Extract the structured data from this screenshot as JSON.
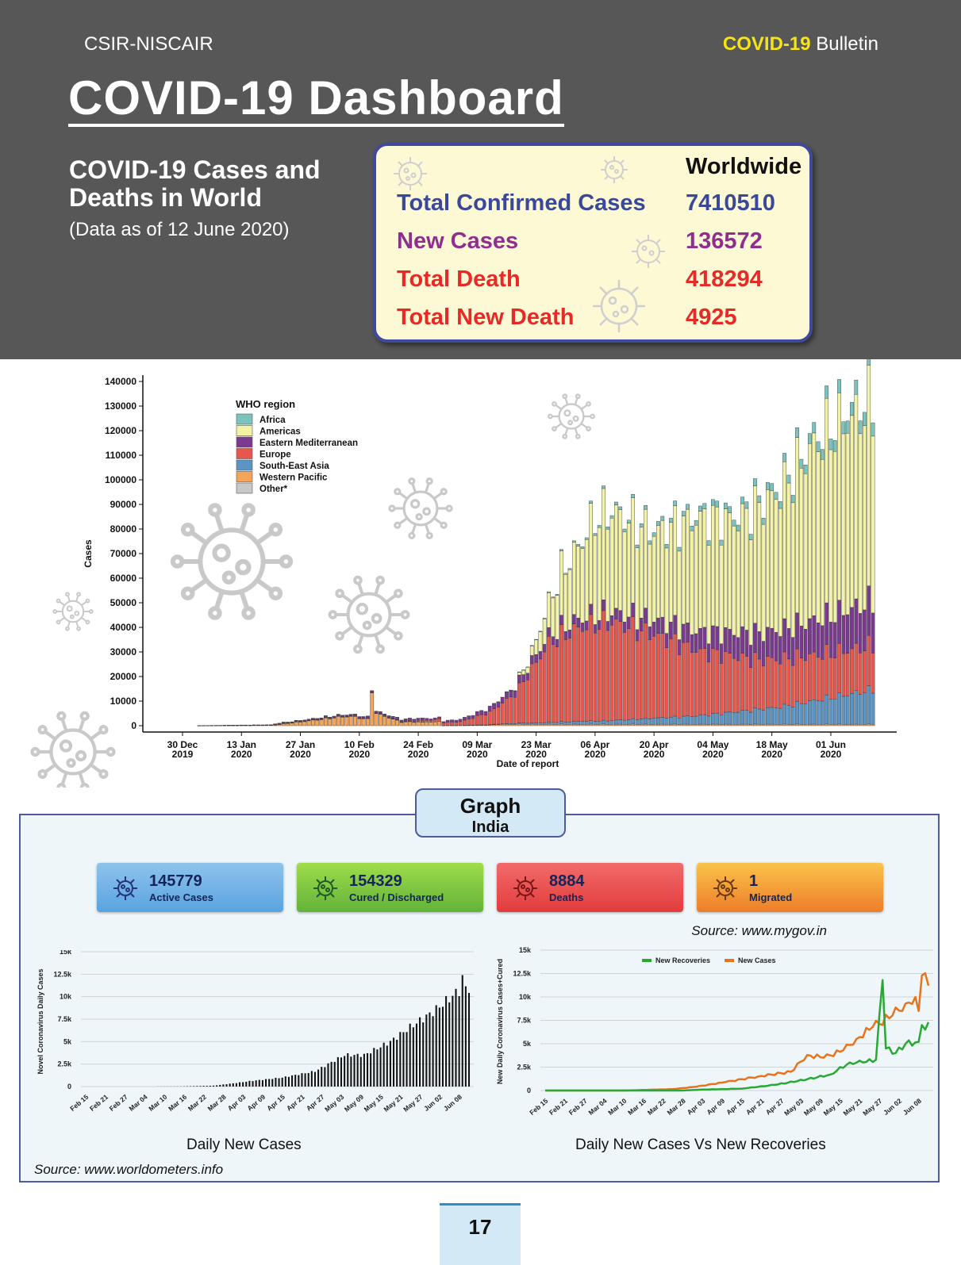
{
  "header": {
    "org": "CSIR-NISCAIR",
    "bulletin_highlight": "COVID-19",
    "bulletin_rest": "Bulletin",
    "title": "COVID-19 Dashboard",
    "subtitle": "COVID-19 Cases and Deaths in World",
    "as_of": "(Data as of 12 June 2020)"
  },
  "worldwide": {
    "heading": "Worldwide",
    "rows": [
      {
        "label": "Total Confirmed Cases",
        "value": "7410510",
        "color": "#3a4899"
      },
      {
        "label": "New Cases",
        "value": "136572",
        "color": "#8e2f8f"
      },
      {
        "label": "Total Death",
        "value": "418294",
        "color": "#e62a26"
      },
      {
        "label": "Total New Death",
        "value": "4925",
        "color": "#e62a26"
      }
    ]
  },
  "graph_tab": {
    "title": "Graph",
    "subtitle": "India"
  },
  "india_cards": [
    {
      "value": "145779",
      "label": "Active Cases",
      "color_top": "#8ec3ec",
      "color_bottom": "#5aa3e0"
    },
    {
      "value": "154329",
      "label": "Cured / Discharged",
      "color_top": "#9fdc4a",
      "color_bottom": "#62b33a"
    },
    {
      "value": "8884",
      "label": "Deaths",
      "color_top": "#f26b6b",
      "color_bottom": "#e23c3c"
    },
    {
      "value": "1",
      "label": "Migrated",
      "color_top": "#f9c34a",
      "color_bottom": "#ee7d2a"
    }
  ],
  "source_mygov": "Source: www.mygov.in",
  "source_worldometers": "Source: www.worldometers.info",
  "caption_daily": "Daily New Cases",
  "caption_recov": "Daily New Cases Vs New Recoveries",
  "page_number": "17",
  "chart_data": [
    {
      "type": "bar",
      "stacked": true,
      "xlabel": "Date of report",
      "ylabel": "Cases",
      "ylim": [
        0,
        140000
      ],
      "yticks": [
        0,
        10000,
        20000,
        30000,
        40000,
        50000,
        60000,
        70000,
        80000,
        90000,
        100000,
        110000,
        120000,
        130000,
        140000
      ],
      "xtick_labels": [
        [
          "30 Dec",
          "2019"
        ],
        [
          "13 Jan",
          "2020"
        ],
        [
          "27 Jan",
          "2020"
        ],
        [
          "10 Feb",
          "2020"
        ],
        [
          "24 Feb",
          "2020"
        ],
        [
          "09 Mar",
          "2020"
        ],
        [
          "23 Mar",
          "2020"
        ],
        [
          "06 Apr",
          "2020"
        ],
        [
          "20 Apr",
          "2020"
        ],
        [
          "04 May",
          "2020"
        ],
        [
          "18 May",
          "2020"
        ],
        [
          "01 Jun",
          "2020"
        ]
      ],
      "legend_title": "WHO region",
      "legend_position": "top-left",
      "series": [
        {
          "name": "Africa",
          "color": "#7bc4be"
        },
        {
          "name": "Americas",
          "color": "#f3f3a8"
        },
        {
          "name": "Eastern Mediterranean",
          "color": "#7b3a8f"
        },
        {
          "name": "Europe",
          "color": "#e7574e"
        },
        {
          "name": "South-East Asia",
          "color": "#5b95c6"
        },
        {
          "name": "Western Pacific",
          "color": "#f5a55a"
        },
        {
          "name": "Other*",
          "color": "#c8c8c8"
        }
      ],
      "x_range": [
        "2019-12-30",
        "2020-06-11"
      ],
      "total_keypoints": [
        [
          "2019-12-30",
          0
        ],
        [
          "2020-01-20",
          200
        ],
        [
          "2020-01-28",
          1800
        ],
        [
          "2020-02-05",
          3500
        ],
        [
          "2020-02-08",
          3800
        ],
        [
          "2020-02-12",
          2600
        ],
        [
          "2020-02-13",
          15000
        ],
        [
          "2020-02-14",
          5000
        ],
        [
          "2020-02-20",
          1500
        ],
        [
          "2020-02-28",
          1500
        ],
        [
          "2020-03-05",
          2500
        ],
        [
          "2020-03-12",
          7000
        ],
        [
          "2020-03-18",
          16000
        ],
        [
          "2020-03-22",
          30000
        ],
        [
          "2020-03-26",
          50000
        ],
        [
          "2020-03-29",
          63000
        ],
        [
          "2020-04-02",
          73000
        ],
        [
          "2020-04-06",
          85000
        ],
        [
          "2020-04-10",
          88000
        ],
        [
          "2020-04-20",
          80000
        ],
        [
          "2020-04-30",
          86000
        ],
        [
          "2020-05-10",
          86000
        ],
        [
          "2020-05-20",
          98000
        ],
        [
          "2020-05-28",
          118000
        ],
        [
          "2020-06-04",
          128000
        ],
        [
          "2020-06-11",
          136000
        ]
      ],
      "europe_keypoints": [
        [
          "2019-12-30",
          0
        ],
        [
          "2020-02-20",
          100
        ],
        [
          "2020-03-05",
          1500
        ],
        [
          "2020-03-12",
          5000
        ],
        [
          "2020-03-18",
          12000
        ],
        [
          "2020-03-26",
          32000
        ],
        [
          "2020-04-02",
          38000
        ],
        [
          "2020-04-10",
          40000
        ],
        [
          "2020-04-20",
          34000
        ],
        [
          "2020-05-01",
          26000
        ],
        [
          "2020-05-15",
          20000
        ],
        [
          "2020-06-01",
          18000
        ],
        [
          "2020-06-11",
          18000
        ]
      ],
      "emed_keypoints": [
        [
          "2019-12-30",
          0
        ],
        [
          "2020-03-05",
          1000
        ],
        [
          "2020-03-20",
          3000
        ],
        [
          "2020-04-10",
          4000
        ],
        [
          "2020-05-01",
          8000
        ],
        [
          "2020-05-20",
          12000
        ],
        [
          "2020-06-11",
          18000
        ]
      ],
      "sea_keypoints": [
        [
          "2019-12-30",
          0
        ],
        [
          "2020-03-15",
          200
        ],
        [
          "2020-04-10",
          1500
        ],
        [
          "2020-05-01",
          3500
        ],
        [
          "2020-05-20",
          7000
        ],
        [
          "2020-06-11",
          14000
        ]
      ],
      "africa_keypoints": [
        [
          "2019-12-30",
          0
        ],
        [
          "2020-03-20",
          100
        ],
        [
          "2020-04-20",
          1500
        ],
        [
          "2020-05-20",
          3000
        ],
        [
          "2020-06-11",
          6000
        ]
      ]
    },
    {
      "type": "bar",
      "ylabel": "Novel Coronavirus Daily Cases",
      "xlabel": "",
      "ylim": [
        0,
        15000
      ],
      "yticks": [
        "0",
        "2.5k",
        "5k",
        "7.5k",
        "10k",
        "12.5k",
        "15k"
      ],
      "xtick_labels": [
        "Feb 15",
        "Feb 21",
        "Feb 27",
        "Mar 04",
        "Mar 10",
        "Mar 16",
        "Mar 22",
        "Mar 28",
        "Apr 03",
        "Apr 09",
        "Apr 15",
        "Apr 21",
        "Apr 27",
        "May 03",
        "May 09",
        "May 15",
        "May 21",
        "May 27",
        "Jun 02",
        "Jun 08"
      ],
      "x_range": [
        "2020-02-15",
        "2020-06-11"
      ],
      "keypoints": [
        [
          "2020-02-15",
          0
        ],
        [
          "2020-03-01",
          0
        ],
        [
          "2020-03-15",
          20
        ],
        [
          "2020-03-25",
          100
        ],
        [
          "2020-04-01",
          400
        ],
        [
          "2020-04-05",
          600
        ],
        [
          "2020-04-15",
          1000
        ],
        [
          "2020-04-25",
          1700
        ],
        [
          "2020-05-04",
          3500
        ],
        [
          "2020-05-10",
          3500
        ],
        [
          "2020-05-18",
          5000
        ],
        [
          "2020-05-24",
          6600
        ],
        [
          "2020-05-31",
          8300
        ],
        [
          "2020-06-05",
          9800
        ],
        [
          "2020-06-09",
          11000
        ],
        [
          "2020-06-11",
          11000
        ]
      ],
      "peak": [
        [
          "2020-06-09",
          12400
        ]
      ]
    },
    {
      "type": "line",
      "ylabel": "New Daily Coronavirus Cases+Cured",
      "xlabel": "",
      "ylim": [
        0,
        15000
      ],
      "yticks": [
        "0",
        "2.5k",
        "5k",
        "7.5k",
        "10k",
        "12.5k",
        "15k"
      ],
      "xtick_labels": [
        "Feb 15",
        "Feb 21",
        "Feb 27",
        "Mar 04",
        "Mar 10",
        "Mar 16",
        "Mar 22",
        "Mar 28",
        "Apr 03",
        "Apr 09",
        "Apr 15",
        "Apr 21",
        "Apr 27",
        "May 03",
        "May 09",
        "May 15",
        "May 21",
        "May 27",
        "Jun 02",
        "Jun 08"
      ],
      "legend_position": "top-center",
      "x_range": [
        "2020-02-15",
        "2020-06-11"
      ],
      "series": [
        {
          "name": "New Recoveries",
          "color": "#2aa836",
          "points": [
            [
              "2020-02-15",
              0
            ],
            [
              "2020-03-28",
              0
            ],
            [
              "2020-04-03",
              100
            ],
            [
              "2020-04-15",
              200
            ],
            [
              "2020-04-25",
              600
            ],
            [
              "2020-05-05",
              1200
            ],
            [
              "2020-05-12",
              1700
            ],
            [
              "2020-05-18",
              3000
            ],
            [
              "2020-05-22",
              3000
            ],
            [
              "2020-05-26",
              3300
            ],
            [
              "2020-05-28",
              11800
            ],
            [
              "2020-05-29",
              4500
            ],
            [
              "2020-06-01",
              4000
            ],
            [
              "2020-06-04",
              5000
            ],
            [
              "2020-06-08",
              5200
            ],
            [
              "2020-06-09",
              7000
            ],
            [
              "2020-06-10",
              6500
            ],
            [
              "2020-06-11",
              7300
            ]
          ]
        },
        {
          "name": "New Cases",
          "color": "#e6741f",
          "points": [
            [
              "2020-02-15",
              0
            ],
            [
              "2020-03-10",
              0
            ],
            [
              "2020-03-25",
              150
            ],
            [
              "2020-04-01",
              400
            ],
            [
              "2020-04-10",
              900
            ],
            [
              "2020-04-20",
              1500
            ],
            [
              "2020-04-30",
              2000
            ],
            [
              "2020-05-05",
              3800
            ],
            [
              "2020-05-10",
              3500
            ],
            [
              "2020-05-16",
              4300
            ],
            [
              "2020-05-20",
              5500
            ],
            [
              "2020-05-25",
              6800
            ],
            [
              "2020-05-31",
              8000
            ],
            [
              "2020-06-04",
              9300
            ],
            [
              "2020-06-07",
              10000
            ],
            [
              "2020-06-08",
              8500
            ],
            [
              "2020-06-09",
              12300
            ],
            [
              "2020-06-11",
              11200
            ]
          ]
        }
      ]
    }
  ]
}
